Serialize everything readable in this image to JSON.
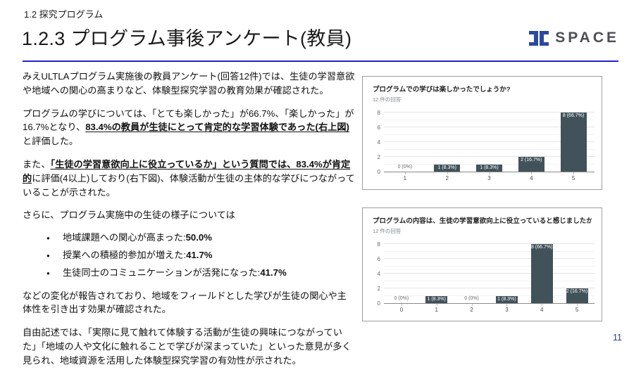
{
  "header": {
    "eyebrow": "1.2 探究プログラム",
    "title": "1.2.3 プログラム事後アンケート(教員)",
    "logo_text": "SPACE"
  },
  "footer": {
    "page_number": "11"
  },
  "colors": {
    "accent_divider": "#2222cc",
    "logo_blue": "#2b4a9b",
    "logo_gray": "#4d4f53",
    "page_number_blue": "#2e3b8f",
    "bar_color": "#42525b"
  },
  "body": {
    "p1": [
      {
        "t": "みえULTLAプログラム実施後の教員アンケート(回答12件)では、生徒の学習意欲や地域への関心の高まりなど、体験型探究学習の教育効果が確認された。"
      }
    ],
    "p2": [
      {
        "t": "プログラムの学びについては、「とても楽しかった」が66.7%、「楽しかった」が16.7%となり、"
      },
      {
        "t": "83.4%の教員が生徒にとって肯定的な学習体験であった(右上図)",
        "b": true,
        "u": true
      },
      {
        "t": "と評価した。"
      }
    ],
    "p3": [
      {
        "t": "また、"
      },
      {
        "t": "「生徒の学習意欲向上に役立っているか」という質問では、83.4%が肯定的",
        "b": true,
        "u": true
      },
      {
        "t": "に評価(4以上)しており(右下図)、体験活動が生徒の主体的な学びにつながっていることが示された。"
      }
    ],
    "p4": [
      {
        "t": "さらに、プログラム実施中の生徒の様子については"
      }
    ],
    "bullets": [
      [
        {
          "t": "地域課題への関心が高まった:"
        },
        {
          "t": "50.0%",
          "b": true
        }
      ],
      [
        {
          "t": "授業への積極的参加が増えた:"
        },
        {
          "t": "41.7%",
          "b": true
        }
      ],
      [
        {
          "t": "生徒同士のコミュニケーションが活発になった:"
        },
        {
          "t": "41.7%",
          "b": true
        }
      ]
    ],
    "p5": [
      {
        "t": "などの変化が報告されており、地域をフィールドとした学びが生徒の関心や主体性を引き出す効果が確認された。"
      }
    ],
    "p6": [
      {
        "t": "自由記述では、「実際に見て触れて体験する活動が生徒の興味につながっていた」「地域の人や文化に触れることで学びが深まっていた」といった意見が多く見られ、地域資源を活用した体験型探究学習の有効性が示された。"
      }
    ]
  },
  "chart_data": [
    {
      "type": "bar",
      "title": "プログラムでの学びは楽しかったでしょうか?",
      "subtitle": "12 件の回答",
      "categories": [
        "1",
        "2",
        "3",
        "4",
        "5"
      ],
      "values": [
        0,
        1,
        1,
        2,
        8
      ],
      "labels": [
        "0 (0%)",
        "1 (8.3%)",
        "1 (8.3%)",
        "2 (16.7%)",
        "8 (66.7%)"
      ],
      "ylim": [
        0,
        8
      ],
      "yticks": [
        0,
        2,
        4,
        6,
        8
      ],
      "bar_color": "#42525b",
      "grid": true,
      "legend": false
    },
    {
      "type": "bar",
      "title": "プログラムの内容は、生徒の学習意欲向上に役立っていると感じましたか?",
      "subtitle": "12 件の回答",
      "categories": [
        "0",
        "1",
        "2",
        "3",
        "4",
        "5"
      ],
      "values": [
        0,
        1,
        0,
        1,
        8,
        2
      ],
      "labels": [
        "0 (0%)",
        "1 (8.3%)",
        "0 (0%)",
        "1 (8.3%)",
        "8 (66.7%)",
        "2 (16.7%)"
      ],
      "ylim": [
        0,
        8
      ],
      "yticks": [
        0,
        2,
        4,
        6,
        8
      ],
      "bar_color": "#42525b",
      "grid": true,
      "legend": false
    }
  ]
}
